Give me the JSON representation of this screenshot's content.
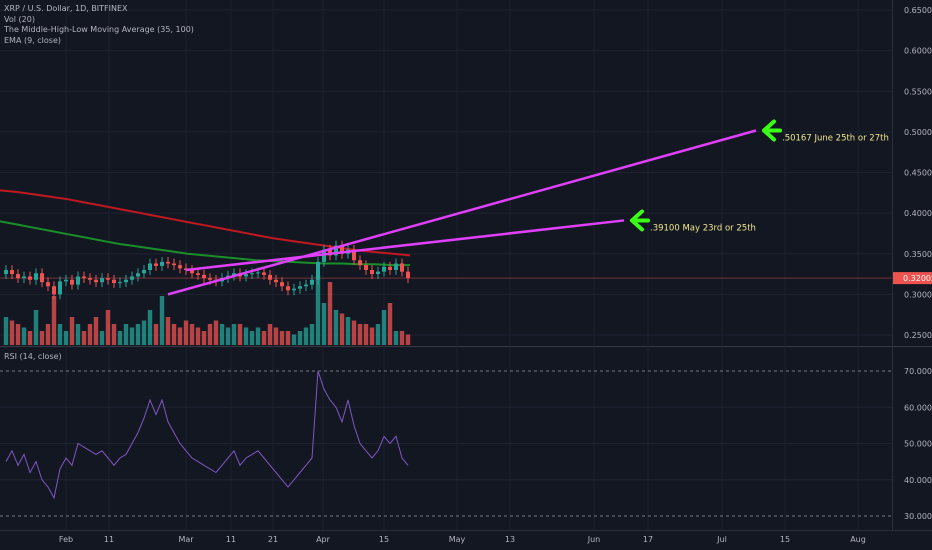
{
  "legend": {
    "symbol": "XRP / U.S. Dollar, 1D, BITFINEX",
    "vol": "Vol (20)",
    "mhl": "The Middle-High-Low Moving Average (35, 100)",
    "ema": "EMA (9, close)",
    "rsi": "RSI (14, close)"
  },
  "chart_data": {
    "type": "candlestick",
    "price_axis": {
      "ticks": [
        "0.65000",
        "0.60000",
        "0.55000",
        "0.50000",
        "0.45000",
        "0.40000",
        "0.35000",
        "0.30000",
        "0.25000"
      ],
      "tick_values": [
        0.65,
        0.6,
        0.55,
        0.5,
        0.45,
        0.4,
        0.35,
        0.3,
        0.25
      ],
      "current_price": "0.32003",
      "current_value": 0.32003
    },
    "rsi_axis": {
      "ticks": [
        "70.0000",
        "60.0000",
        "50.0000",
        "40.0000",
        "30.0000"
      ],
      "tick_values": [
        70,
        60,
        50,
        40,
        30
      ],
      "bands": [
        70,
        30
      ]
    },
    "time_axis": [
      "Feb",
      "11",
      "Mar",
      "11",
      "21",
      "Apr",
      "15",
      "May",
      "13",
      "Jun",
      "17",
      "Jul",
      "15",
      "Aug"
    ],
    "ma_red": [
      0.428,
      0.426,
      0.423,
      0.42,
      0.417,
      0.413,
      0.409,
      0.405,
      0.401,
      0.397,
      0.393,
      0.389,
      0.385,
      0.381,
      0.377,
      0.373,
      0.369,
      0.366,
      0.363,
      0.36,
      0.357,
      0.354,
      0.352,
      0.35,
      0.348
    ],
    "ma_green": [
      0.39,
      0.386,
      0.382,
      0.378,
      0.374,
      0.37,
      0.366,
      0.362,
      0.359,
      0.356,
      0.353,
      0.35,
      0.348,
      0.346,
      0.344,
      0.342,
      0.341,
      0.34,
      0.339,
      0.338,
      0.338,
      0.337,
      0.337,
      0.336,
      0.336
    ],
    "candles_close": [
      0.33,
      0.325,
      0.32,
      0.322,
      0.318,
      0.326,
      0.315,
      0.31,
      0.3,
      0.316,
      0.318,
      0.312,
      0.322,
      0.32,
      0.318,
      0.315,
      0.32,
      0.318,
      0.314,
      0.315,
      0.318,
      0.322,
      0.326,
      0.33,
      0.338,
      0.335,
      0.34,
      0.338,
      0.336,
      0.332,
      0.33,
      0.326,
      0.324,
      0.32,
      0.318,
      0.316,
      0.32,
      0.323,
      0.326,
      0.322,
      0.325,
      0.326,
      0.327,
      0.324,
      0.318,
      0.315,
      0.31,
      0.305,
      0.307,
      0.31,
      0.312,
      0.318,
      0.34,
      0.355,
      0.348,
      0.36,
      0.35,
      0.355,
      0.342,
      0.336,
      0.33,
      0.325,
      0.328,
      0.334,
      0.33,
      0.338,
      0.328,
      0.32
    ],
    "volume": [
      0.4,
      0.35,
      0.3,
      0.25,
      0.2,
      0.5,
      0.2,
      0.3,
      0.7,
      0.3,
      0.2,
      0.4,
      0.3,
      0.2,
      0.3,
      0.4,
      0.2,
      0.5,
      0.3,
      0.2,
      0.3,
      0.25,
      0.3,
      0.35,
      0.5,
      0.3,
      0.7,
      0.4,
      0.3,
      0.25,
      0.35,
      0.3,
      0.25,
      0.2,
      0.3,
      0.35,
      0.3,
      0.25,
      0.3,
      0.3,
      0.25,
      0.2,
      0.25,
      0.2,
      0.3,
      0.25,
      0.2,
      0.2,
      0.15,
      0.2,
      0.25,
      0.3,
      1.0,
      0.6,
      0.9,
      0.5,
      0.45,
      0.4,
      0.35,
      0.3,
      0.3,
      0.25,
      0.3,
      0.5,
      0.6,
      0.2,
      0.2,
      0.15
    ],
    "rsi": [
      45,
      48,
      44,
      47,
      42,
      45,
      40,
      38,
      35,
      43,
      46,
      44,
      50,
      49,
      48,
      47,
      48,
      46,
      44,
      46,
      47,
      50,
      53,
      57,
      62,
      58,
      62,
      56,
      53,
      50,
      48,
      46,
      45,
      44,
      43,
      42,
      44,
      46,
      48,
      44,
      46,
      47,
      48,
      46,
      44,
      42,
      40,
      38,
      40,
      42,
      44,
      46,
      70,
      65,
      62,
      60,
      56,
      62,
      55,
      50,
      48,
      46,
      48,
      52,
      50,
      52,
      46,
      44
    ],
    "trendlines": [
      {
        "from_index": 27,
        "from_price": 0.3,
        "to_index": 125,
        "to_price": 0.5017
      },
      {
        "from_index": 30,
        "from_price": 0.33,
        "to_index": 103,
        "to_price": 0.391
      }
    ],
    "annotations": [
      {
        "text": ".50167 June 25th or 27th",
        "index": 125,
        "price": 0.5017
      },
      {
        "text": ".39100 May 23rd or 25th",
        "index": 103,
        "price": 0.391
      }
    ]
  }
}
